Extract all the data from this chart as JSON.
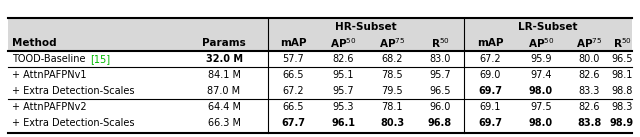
{
  "rows": [
    {
      "method": "TOOD-Baseline [15]",
      "params": "32.0 M",
      "hr_map": "57.7",
      "hr_ap50": "82.6",
      "hr_ap75": "68.2",
      "hr_r50": "83.0",
      "lr_map": "67.2",
      "lr_ap50": "95.9",
      "lr_ap75": "80.0",
      "lr_r50": "96.5",
      "bold": [],
      "params_bold": true
    },
    {
      "method": "+ AttnPAFPNv1",
      "params": "84.1 M",
      "hr_map": "66.5",
      "hr_ap50": "95.1",
      "hr_ap75": "78.5",
      "hr_r50": "95.7",
      "lr_map": "69.0",
      "lr_ap50": "97.4",
      "lr_ap75": "82.6",
      "lr_r50": "98.1",
      "bold": [],
      "params_bold": false
    },
    {
      "method": "+ Extra Detection-Scales",
      "params": "87.0 M",
      "hr_map": "67.2",
      "hr_ap50": "95.7",
      "hr_ap75": "79.5",
      "hr_r50": "96.5",
      "lr_map": "69.7",
      "lr_ap50": "98.0",
      "lr_ap75": "83.3",
      "lr_r50": "98.8",
      "bold": [
        "lr_map",
        "lr_ap50"
      ],
      "params_bold": false
    },
    {
      "method": "+ AttnPAFPNv2",
      "params": "64.4 M",
      "hr_map": "66.5",
      "hr_ap50": "95.3",
      "hr_ap75": "78.1",
      "hr_r50": "96.0",
      "lr_map": "69.1",
      "lr_ap50": "97.5",
      "lr_ap75": "82.6",
      "lr_r50": "98.3",
      "bold": [],
      "params_bold": false
    },
    {
      "method": "+ Extra Detection-Scales",
      "params": "66.3 M",
      "hr_map": "67.7",
      "hr_ap50": "96.1",
      "hr_ap75": "80.3",
      "hr_r50": "96.8",
      "lr_map": "69.7",
      "lr_ap50": "98.0",
      "lr_ap75": "83.8",
      "lr_r50": "98.9",
      "bold": [
        "hr_map",
        "hr_ap50",
        "hr_ap75",
        "hr_r50",
        "lr_map",
        "lr_ap50",
        "lr_r50",
        "lr_ap75"
      ],
      "params_bold": false
    }
  ],
  "separator_after": [
    0,
    2
  ],
  "cite_color": "#00bb00",
  "header_bg": "#d8d8d8",
  "figsize": [
    6.4,
    1.37
  ],
  "dpi": 100
}
